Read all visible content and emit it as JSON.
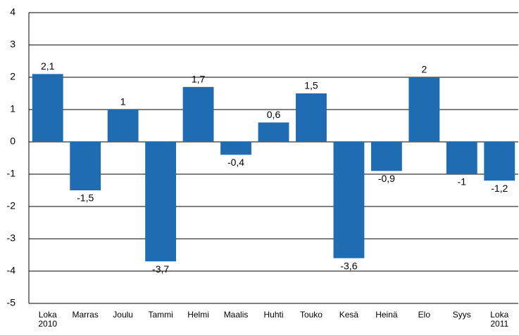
{
  "chart_data": {
    "type": "bar",
    "categories": [
      "Loka\n2010",
      "Marras",
      "Joulu",
      "Tammi",
      "Helmi",
      "Maalis",
      "Huhti",
      "Touko",
      "Kesä",
      "Heinä",
      "Elo",
      "Syys",
      "Loka\n2011"
    ],
    "values": [
      2.1,
      -1.5,
      1,
      -3.7,
      1.7,
      -0.4,
      0.6,
      1.5,
      -3.6,
      -0.9,
      2,
      -1,
      -1.2
    ],
    "value_labels": [
      "2,1",
      "-1,5",
      "1",
      "-3,7",
      "1,7",
      "-0,4",
      "0,6",
      "1,5",
      "-3,6",
      "-0,9",
      "2",
      "-1",
      "-1,2"
    ],
    "color": "#1f6cb3",
    "ylim": [
      -5,
      4
    ],
    "yticks": [
      -5,
      -4,
      -3,
      -2,
      -1,
      0,
      1,
      2,
      3,
      4
    ],
    "grid": true
  }
}
